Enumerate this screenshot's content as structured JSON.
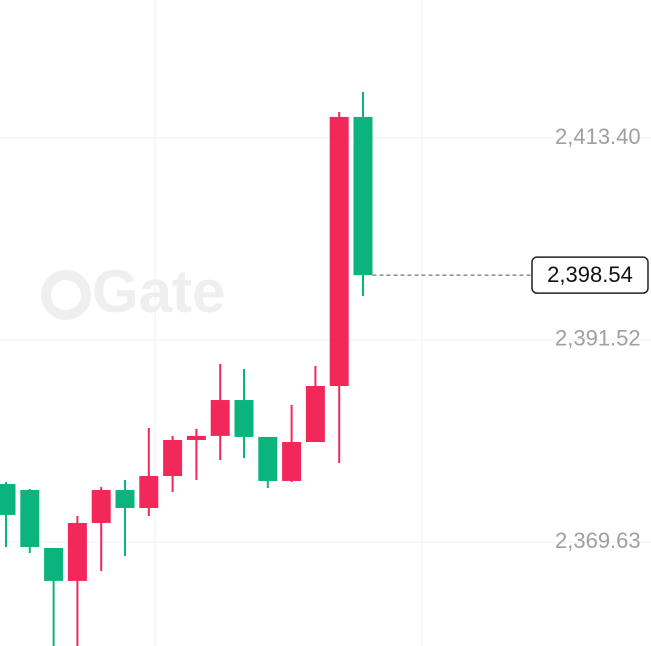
{
  "chart_data": {
    "type": "candlestick",
    "watermark": "Gate",
    "open": [
      2375.91,
      2375.26,
      2368.98,
      2365.41,
      2371.69,
      2375.26,
      2373.31,
      2376.78,
      2380.68,
      2381.12,
      2385.01,
      2381.01,
      2376.24,
      2380.46,
      2386.53,
      2415.68
    ],
    "high": [
      2376.13,
      2375.37,
      2368.98,
      2372.45,
      2375.59,
      2376.35,
      2381.98,
      2381.12,
      2381.87,
      2388.92,
      2388.37,
      2381.01,
      2384.47,
      2388.7,
      2416.22,
      2418.38
    ],
    "low": [
      2369.09,
      2368.44,
      2358.36,
      2358.36,
      2366.49,
      2368.11,
      2372.45,
      2375.05,
      2376.35,
      2378.51,
      2378.73,
      2375.48,
      2376.13,
      2380.46,
      2378.19,
      2396.28
    ],
    "close": [
      2372.56,
      2369.09,
      2365.41,
      2371.69,
      2375.26,
      2373.31,
      2376.78,
      2380.68,
      2381.12,
      2385.01,
      2381.01,
      2376.24,
      2380.46,
      2386.53,
      2415.68,
      2398.54
    ],
    "up_color": "#f2285a",
    "down_color": "#0bb47c",
    "ylim": [
      2358.36,
      2428.35
    ],
    "yticks": [
      {
        "value": 2413.4,
        "label": "2,413.40"
      },
      {
        "value": 2391.52,
        "label": "2,391.52"
      },
      {
        "value": 2369.63,
        "label": "2,369.63"
      }
    ],
    "last_price": {
      "value": 2398.54,
      "label": "2,398.54"
    },
    "grid": true
  }
}
